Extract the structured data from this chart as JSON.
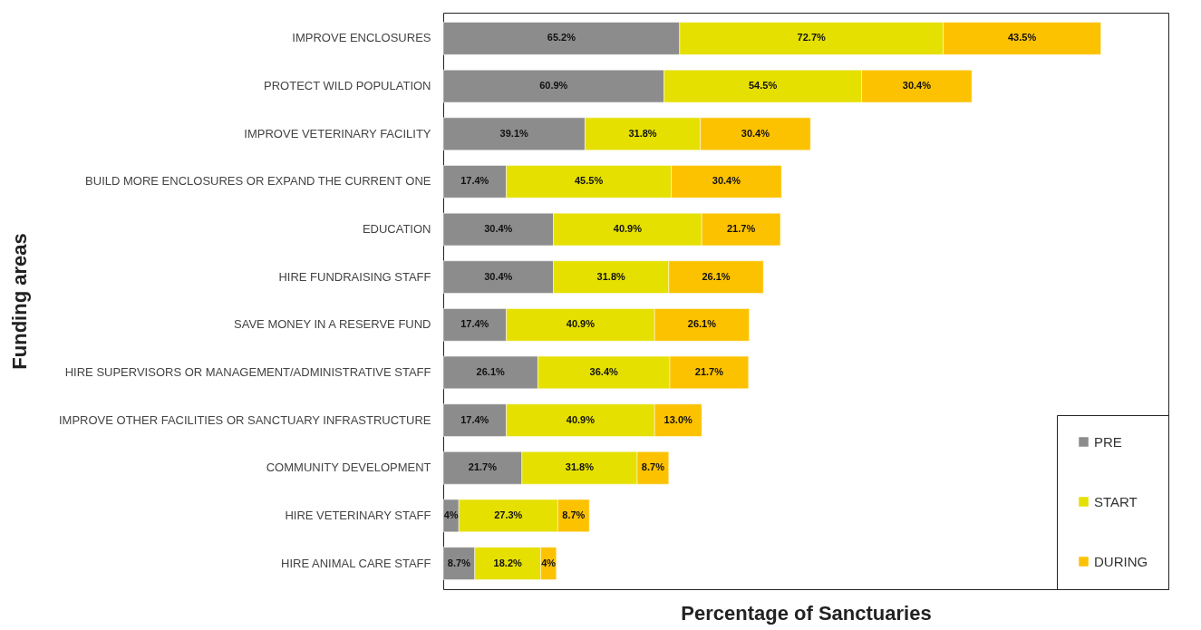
{
  "chart_data": {
    "type": "bar",
    "orientation": "horizontal",
    "stacked": true,
    "xlabel": "Percentage of Sanctuaries",
    "ylabel": "Funding areas",
    "categories": [
      "IMPROVE ENCLOSURES",
      "PROTECT WILD POPULATION",
      "IMPROVE VETERINARY FACILITY",
      "BUILD MORE ENCLOSURES OR EXPAND THE CURRENT ONE",
      "EDUCATION",
      "HIRE FUNDRAISING STAFF",
      "SAVE MONEY IN A RESERVE FUND",
      "HIRE SUPERVISORS OR MANAGEMENT/ADMINISTRATIVE STAFF",
      "IMPROVE OTHER FACILITIES OR SANCTUARY INFRASTRUCTURE",
      "COMMUNITY DEVELOPMENT",
      "HIRE VETERINARY STAFF",
      "HIRE ANIMAL CARE STAFF"
    ],
    "series": [
      {
        "name": "PRE",
        "color": "#8c8c8c",
        "values": [
          65.2,
          60.9,
          39.1,
          17.4,
          30.4,
          30.4,
          17.4,
          26.1,
          17.4,
          21.7,
          4.3,
          8.7
        ],
        "value_labels": [
          "65.2%",
          "60.9%",
          "39.1%",
          "17.4%",
          "30.4%",
          "30.4%",
          "17.4%",
          "26.1%",
          "17.4%",
          "21.7%",
          "4%",
          "8.7%"
        ]
      },
      {
        "name": "START",
        "color": "#e5e000",
        "values": [
          72.7,
          54.5,
          31.8,
          45.5,
          40.9,
          31.8,
          40.9,
          36.4,
          40.9,
          31.8,
          27.3,
          18.2
        ],
        "value_labels": [
          "72.7%",
          "54.5%",
          "31.8%",
          "45.5%",
          "40.9%",
          "31.8%",
          "40.9%",
          "36.4%",
          "40.9%",
          "31.8%",
          "27.3%",
          "18.2%"
        ]
      },
      {
        "name": "DURING",
        "color": "#fcc200",
        "values": [
          43.5,
          30.4,
          30.4,
          30.4,
          21.7,
          26.1,
          26.1,
          21.7,
          13.0,
          8.7,
          8.7,
          4.3
        ],
        "value_labels": [
          "43.5%",
          "30.4%",
          "30.4%",
          "30.4%",
          "21.7%",
          "26.1%",
          "26.1%",
          "21.7%",
          "13.0%",
          "8.7%",
          "8.7%",
          "4%"
        ]
      }
    ],
    "xlim": [
      0,
      200
    ],
    "legend": "bottom right",
    "tick_labels": "y"
  }
}
